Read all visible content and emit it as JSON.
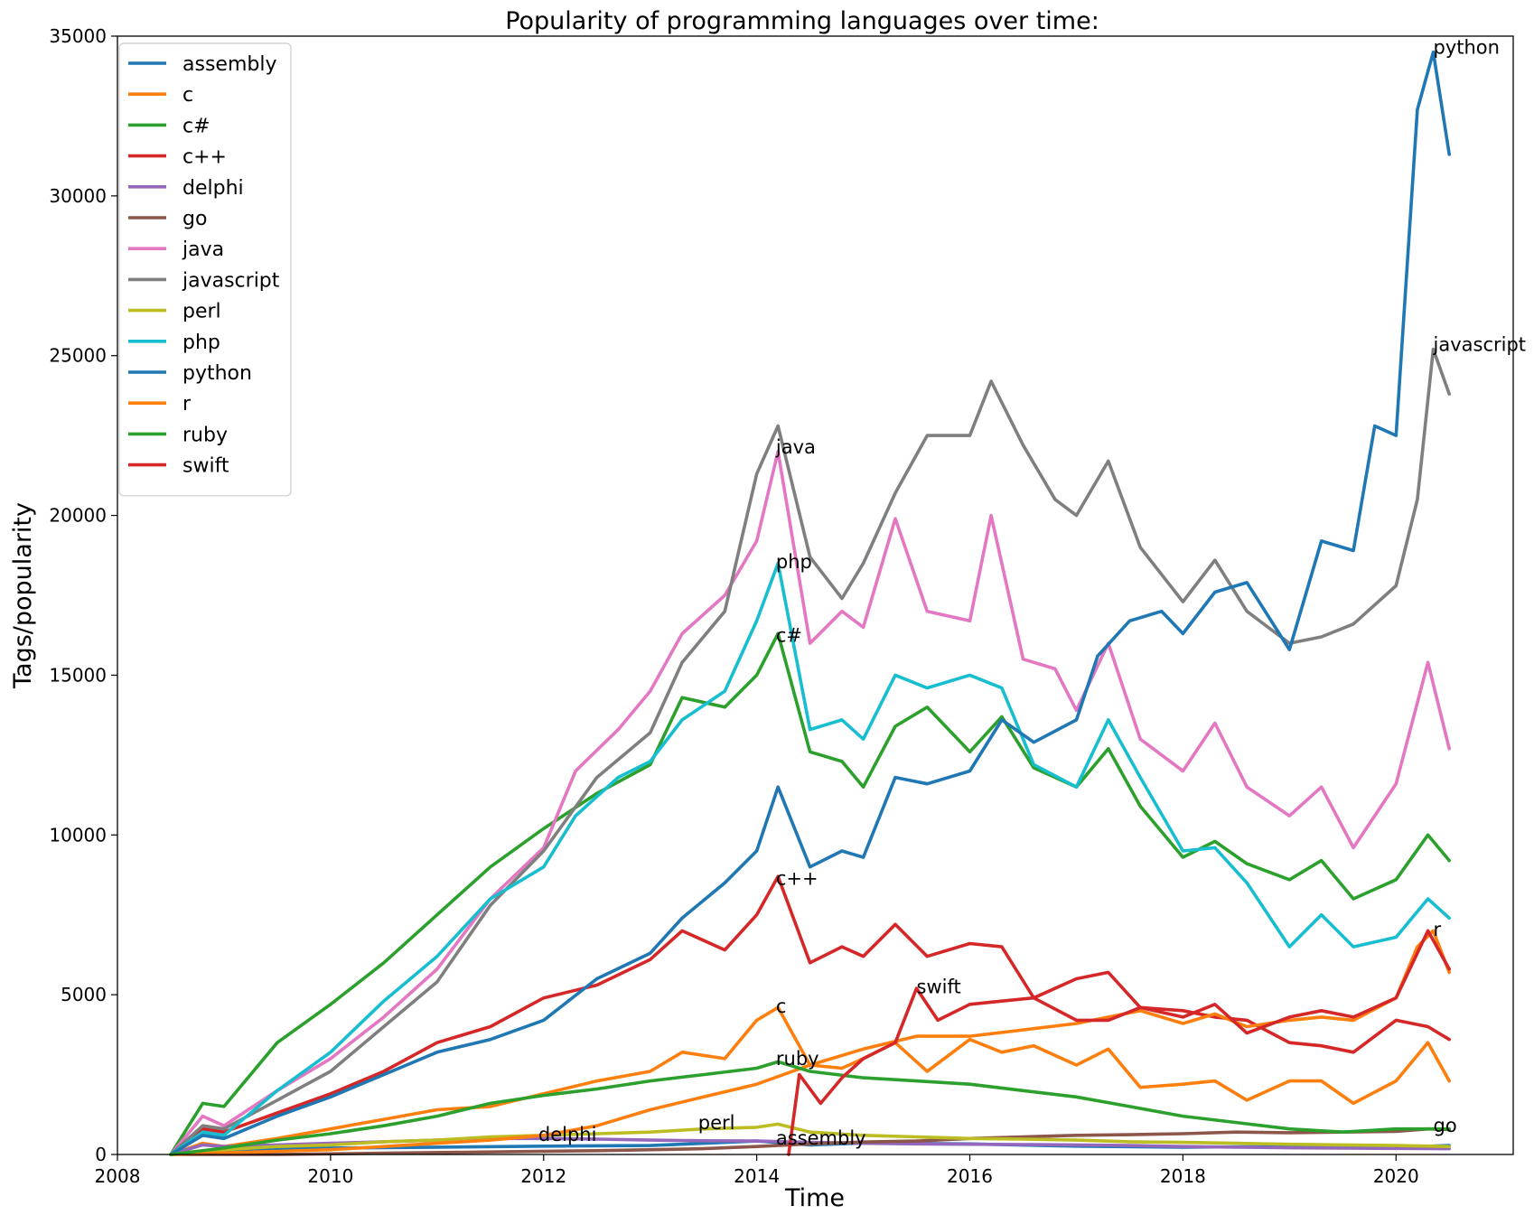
{
  "chart_data": {
    "type": "line",
    "title": "Popularity of programming languages over time:",
    "xlabel": "Time",
    "ylabel": "Tags/popularity",
    "xlim": [
      2008.0,
      2021.1
    ],
    "ylim": [
      0,
      35000
    ],
    "x_ticks": [
      2008,
      2010,
      2012,
      2014,
      2016,
      2018,
      2020
    ],
    "y_ticks": [
      0,
      5000,
      10000,
      15000,
      20000,
      25000,
      30000,
      35000
    ],
    "grid": false,
    "legend_position": "top-left",
    "series": [
      {
        "name": "assembly",
        "color": "#1f77b4",
        "x": [
          2008.5,
          2009.0,
          2010.0,
          2011.0,
          2012.0,
          2013.0,
          2014.0,
          2014.5,
          2015.0,
          2016.0,
          2017.0,
          2018.0,
          2019.0,
          2020.0,
          2020.5
        ],
        "y": [
          0,
          120,
          200,
          230,
          260,
          280,
          420,
          300,
          360,
          330,
          260,
          230,
          250,
          220,
          280
        ]
      },
      {
        "name": "c",
        "color": "#ff7f0e",
        "x": [
          2008.5,
          2008.8,
          2009.0,
          2009.5,
          2010.0,
          2010.5,
          2011.0,
          2011.5,
          2012.0,
          2012.5,
          2013.0,
          2013.3,
          2013.7,
          2014.0,
          2014.2,
          2014.5,
          2014.8,
          2015.0,
          2015.3,
          2015.6,
          2016.0,
          2016.3,
          2016.6,
          2017.0,
          2017.3,
          2017.6,
          2018.0,
          2018.3,
          2018.6,
          2019.0,
          2019.3,
          2019.6,
          2020.0,
          2020.3,
          2020.5
        ],
        "y": [
          0,
          350,
          250,
          500,
          800,
          1100,
          1400,
          1500,
          1900,
          2300,
          2600,
          3200,
          3000,
          4200,
          4600,
          2800,
          2700,
          3000,
          3500,
          2600,
          3600,
          3200,
          3400,
          2800,
          3300,
          2100,
          2200,
          2300,
          1700,
          2300,
          2300,
          1600,
          2300,
          3500,
          2300
        ]
      },
      {
        "name": "c#",
        "color": "#2ca02c",
        "x": [
          2008.5,
          2008.8,
          2009.0,
          2009.5,
          2010.0,
          2010.5,
          2011.0,
          2011.5,
          2012.0,
          2012.5,
          2013.0,
          2013.3,
          2013.7,
          2014.0,
          2014.2,
          2014.5,
          2014.8,
          2015.0,
          2015.3,
          2015.6,
          2016.0,
          2016.3,
          2016.6,
          2017.0,
          2017.3,
          2017.6,
          2018.0,
          2018.3,
          2018.6,
          2019.0,
          2019.3,
          2019.6,
          2020.0,
          2020.3,
          2020.5
        ],
        "y": [
          0,
          1600,
          1500,
          3500,
          4700,
          6000,
          7500,
          9000,
          10200,
          11300,
          12200,
          14300,
          14000,
          15000,
          16300,
          12600,
          12300,
          11500,
          13400,
          14000,
          12600,
          13700,
          12100,
          11500,
          12700,
          10900,
          9300,
          9800,
          9100,
          8600,
          9200,
          8000,
          8600,
          10000,
          9200
        ]
      },
      {
        "name": "c++",
        "color": "#d62728",
        "x": [
          2008.5,
          2008.8,
          2009.0,
          2009.5,
          2010.0,
          2010.5,
          2011.0,
          2011.5,
          2012.0,
          2012.5,
          2013.0,
          2013.3,
          2013.7,
          2014.0,
          2014.2,
          2014.5,
          2014.8,
          2015.0,
          2015.3,
          2015.6,
          2016.0,
          2016.3,
          2016.6,
          2017.0,
          2017.3,
          2017.6,
          2018.0,
          2018.3,
          2018.6,
          2019.0,
          2019.3,
          2019.6,
          2020.0,
          2020.3,
          2020.5
        ],
        "y": [
          0,
          800,
          700,
          1300,
          1900,
          2600,
          3500,
          4000,
          4900,
          5300,
          6100,
          7000,
          6400,
          7500,
          8700,
          6000,
          6500,
          6200,
          7200,
          6200,
          6600,
          6500,
          4900,
          5500,
          5700,
          4600,
          4500,
          4300,
          4200,
          3500,
          3400,
          3200,
          4200,
          4000,
          3600
        ]
      },
      {
        "name": "delphi",
        "color": "#9467bd",
        "x": [
          2008.5,
          2008.8,
          2009.0,
          2009.5,
          2010.0,
          2010.5,
          2011.0,
          2011.5,
          2012.0,
          2012.5,
          2013.0,
          2013.5,
          2014.0,
          2014.5,
          2015.0,
          2015.5,
          2016.0,
          2016.5,
          2017.0,
          2017.5,
          2018.0,
          2018.5,
          2019.0,
          2019.5,
          2020.0,
          2020.5
        ],
        "y": [
          0,
          300,
          250,
          300,
          350,
          400,
          450,
          500,
          500,
          480,
          450,
          430,
          420,
          380,
          350,
          330,
          320,
          310,
          300,
          280,
          250,
          230,
          210,
          200,
          190,
          180
        ]
      },
      {
        "name": "go",
        "color": "#8c564b",
        "x": [
          2008.5,
          2009.5,
          2010.5,
          2011.5,
          2012.5,
          2013.5,
          2014.0,
          2014.5,
          2015.0,
          2015.5,
          2016.0,
          2016.5,
          2017.0,
          2017.5,
          2018.0,
          2018.5,
          2019.0,
          2019.5,
          2020.0,
          2020.3,
          2020.5
        ],
        "y": [
          0,
          0,
          40,
          80,
          120,
          180,
          250,
          330,
          390,
          420,
          500,
          550,
          600,
          620,
          650,
          700,
          680,
          700,
          720,
          800,
          780
        ]
      },
      {
        "name": "java",
        "color": "#e377c2",
        "x": [
          2008.5,
          2008.8,
          2009.0,
          2009.5,
          2010.0,
          2010.5,
          2011.0,
          2011.5,
          2012.0,
          2012.3,
          2012.7,
          2013.0,
          2013.3,
          2013.7,
          2014.0,
          2014.2,
          2014.5,
          2014.8,
          2015.0,
          2015.3,
          2015.6,
          2016.0,
          2016.2,
          2016.5,
          2016.8,
          2017.0,
          2017.3,
          2017.6,
          2018.0,
          2018.3,
          2018.6,
          2019.0,
          2019.3,
          2019.6,
          2020.0,
          2020.3,
          2020.5
        ],
        "y": [
          0,
          1200,
          900,
          2000,
          3000,
          4300,
          5800,
          8000,
          9600,
          12000,
          13300,
          14500,
          16300,
          17500,
          19200,
          22000,
          16000,
          17000,
          16500,
          19900,
          17000,
          16700,
          20000,
          15500,
          15200,
          13900,
          16000,
          13000,
          12000,
          13500,
          11500,
          10600,
          11500,
          9600,
          11600,
          15400,
          12700
        ]
      },
      {
        "name": "javascript",
        "color": "#7f7f7f",
        "x": [
          2008.5,
          2008.8,
          2009.0,
          2009.5,
          2010.0,
          2010.5,
          2011.0,
          2011.5,
          2012.0,
          2012.5,
          2013.0,
          2013.3,
          2013.7,
          2014.0,
          2014.2,
          2014.5,
          2014.8,
          2015.0,
          2015.3,
          2015.6,
          2016.0,
          2016.2,
          2016.5,
          2016.8,
          2017.0,
          2017.3,
          2017.6,
          2018.0,
          2018.3,
          2018.6,
          2019.0,
          2019.3,
          2019.6,
          2020.0,
          2020.2,
          2020.35,
          2020.5
        ],
        "y": [
          0,
          900,
          800,
          1700,
          2600,
          4000,
          5400,
          7800,
          9500,
          11800,
          13200,
          15400,
          17000,
          21300,
          22800,
          18700,
          17400,
          18500,
          20700,
          22500,
          22500,
          24200,
          22200,
          20500,
          20000,
          21700,
          19000,
          17300,
          18600,
          17000,
          16000,
          16200,
          16600,
          17800,
          20500,
          25200,
          23800
        ]
      },
      {
        "name": "perl",
        "color": "#bcbd22",
        "x": [
          2008.5,
          2009.0,
          2009.5,
          2010.0,
          2010.5,
          2011.0,
          2011.5,
          2012.0,
          2012.5,
          2013.0,
          2013.5,
          2014.0,
          2014.2,
          2014.5,
          2015.0,
          2015.5,
          2016.0,
          2016.5,
          2017.0,
          2017.5,
          2018.0,
          2018.5,
          2019.0,
          2019.5,
          2020.0,
          2020.5
        ],
        "y": [
          0,
          150,
          250,
          300,
          400,
          450,
          550,
          600,
          650,
          700,
          800,
          850,
          950,
          700,
          600,
          550,
          500,
          480,
          450,
          400,
          380,
          350,
          320,
          300,
          280,
          250
        ]
      },
      {
        "name": "php",
        "color": "#17becf",
        "x": [
          2008.5,
          2008.8,
          2009.0,
          2009.5,
          2010.0,
          2010.5,
          2011.0,
          2011.5,
          2012.0,
          2012.3,
          2012.7,
          2013.0,
          2013.3,
          2013.7,
          2014.0,
          2014.2,
          2014.5,
          2014.8,
          2015.0,
          2015.3,
          2015.6,
          2016.0,
          2016.3,
          2016.6,
          2017.0,
          2017.3,
          2017.6,
          2018.0,
          2018.3,
          2018.6,
          2019.0,
          2019.3,
          2019.6,
          2020.0,
          2020.3,
          2020.5
        ],
        "y": [
          0,
          700,
          600,
          2000,
          3200,
          4800,
          6200,
          8000,
          9000,
          10600,
          11800,
          12300,
          13600,
          14500,
          16700,
          18500,
          13300,
          13600,
          13000,
          15000,
          14600,
          15000,
          14600,
          12200,
          11500,
          13600,
          11800,
          9500,
          9600,
          8500,
          6500,
          7500,
          6500,
          6800,
          8000,
          7400
        ]
      },
      {
        "name": "python",
        "color": "#1f77b4",
        "x": [
          2008.5,
          2008.8,
          2009.0,
          2009.5,
          2010.0,
          2010.5,
          2011.0,
          2011.5,
          2012.0,
          2012.5,
          2013.0,
          2013.3,
          2013.7,
          2014.0,
          2014.2,
          2014.5,
          2014.8,
          2015.0,
          2015.3,
          2015.6,
          2016.0,
          2016.3,
          2016.6,
          2017.0,
          2017.2,
          2017.5,
          2017.8,
          2018.0,
          2018.3,
          2018.6,
          2019.0,
          2019.3,
          2019.6,
          2019.8,
          2020.0,
          2020.2,
          2020.35,
          2020.5
        ],
        "y": [
          0,
          600,
          500,
          1200,
          1800,
          2500,
          3200,
          3600,
          4200,
          5500,
          6300,
          7400,
          8500,
          9500,
          11500,
          9000,
          9500,
          9300,
          11800,
          11600,
          12000,
          13600,
          12900,
          13600,
          15600,
          16700,
          17000,
          16300,
          17600,
          17900,
          15800,
          19200,
          18900,
          22800,
          22500,
          32700,
          34500,
          31300
        ]
      },
      {
        "name": "r",
        "color": "#ff7f0e",
        "x": [
          2008.5,
          2009.0,
          2009.5,
          2010.0,
          2010.5,
          2011.0,
          2011.5,
          2012.0,
          2012.5,
          2013.0,
          2013.5,
          2014.0,
          2014.5,
          2015.0,
          2015.5,
          2016.0,
          2016.5,
          2017.0,
          2017.3,
          2017.6,
          2018.0,
          2018.3,
          2018.6,
          2019.0,
          2019.3,
          2019.6,
          2020.0,
          2020.2,
          2020.35,
          2020.5
        ],
        "y": [
          0,
          50,
          100,
          150,
          250,
          350,
          450,
          600,
          900,
          1400,
          1800,
          2200,
          2800,
          3300,
          3700,
          3700,
          3900,
          4100,
          4300,
          4500,
          4100,
          4400,
          4000,
          4200,
          4300,
          4200,
          4900,
          6500,
          7000,
          5700
        ]
      },
      {
        "name": "ruby",
        "color": "#2ca02c",
        "x": [
          2008.5,
          2009.0,
          2009.5,
          2010.0,
          2010.5,
          2011.0,
          2011.5,
          2012.0,
          2012.5,
          2013.0,
          2013.5,
          2014.0,
          2014.2,
          2014.5,
          2015.0,
          2015.5,
          2016.0,
          2016.5,
          2017.0,
          2017.5,
          2018.0,
          2018.5,
          2019.0,
          2019.5,
          2020.0,
          2020.5
        ],
        "y": [
          0,
          200,
          450,
          650,
          900,
          1200,
          1600,
          1850,
          2050,
          2300,
          2500,
          2700,
          2900,
          2600,
          2400,
          2300,
          2200,
          2000,
          1800,
          1500,
          1200,
          1000,
          800,
          700,
          800,
          800
        ]
      },
      {
        "name": "swift",
        "color": "#d62728",
        "x": [
          2014.3,
          2014.4,
          2014.6,
          2014.8,
          2015.0,
          2015.3,
          2015.5,
          2015.7,
          2016.0,
          2016.3,
          2016.6,
          2017.0,
          2017.3,
          2017.6,
          2018.0,
          2018.3,
          2018.6,
          2019.0,
          2019.3,
          2019.6,
          2020.0,
          2020.3,
          2020.5
        ],
        "y": [
          0,
          2500,
          1600,
          2400,
          3000,
          3500,
          5200,
          4200,
          4700,
          4800,
          4900,
          4200,
          4200,
          4600,
          4300,
          4700,
          3800,
          4300,
          4500,
          4300,
          4900,
          7000,
          5800
        ]
      }
    ],
    "annotations": [
      {
        "text": "python",
        "x": 2020.35,
        "y": 34500
      },
      {
        "text": "javascript",
        "x": 2020.35,
        "y": 25200
      },
      {
        "text": "java",
        "x": 2014.18,
        "y": 22000
      },
      {
        "text": "php",
        "x": 2014.18,
        "y": 18400
      },
      {
        "text": "c#",
        "x": 2014.18,
        "y": 16100
      },
      {
        "text": "c++",
        "x": 2014.18,
        "y": 8500
      },
      {
        "text": "r",
        "x": 2020.35,
        "y": 6900
      },
      {
        "text": "swift",
        "x": 2015.5,
        "y": 5100
      },
      {
        "text": "c",
        "x": 2014.18,
        "y": 4500
      },
      {
        "text": "ruby",
        "x": 2014.18,
        "y": 2850
      },
      {
        "text": "perl",
        "x": 2013.45,
        "y": 850
      },
      {
        "text": "delphi",
        "x": 2011.95,
        "y": 480
      },
      {
        "text": "assembly",
        "x": 2014.18,
        "y": 370
      },
      {
        "text": "go",
        "x": 2020.35,
        "y": 770
      }
    ]
  }
}
